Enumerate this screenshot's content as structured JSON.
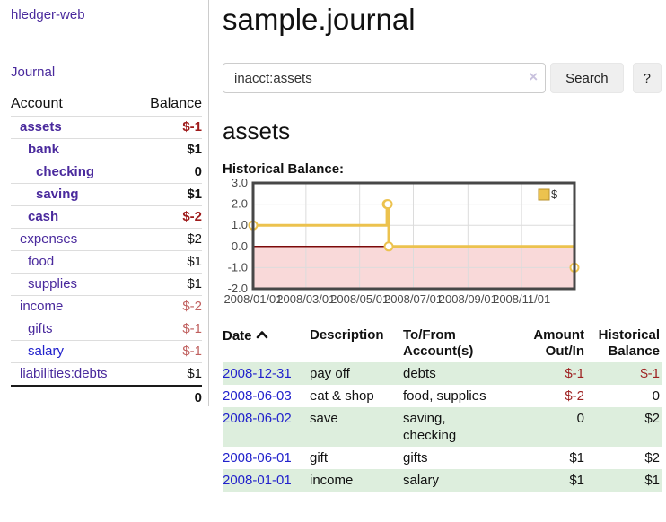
{
  "brand": "hledger-web",
  "nav": {
    "journal": "Journal"
  },
  "sidebar": {
    "account_col": "Account",
    "balance_col": "Balance",
    "accounts": [
      {
        "name": "assets",
        "balance": "$-1",
        "level": 1,
        "bold": true,
        "negative": true,
        "blue": false
      },
      {
        "name": "bank",
        "balance": "$1",
        "level": 2,
        "bold": true,
        "negative": false,
        "blue": false
      },
      {
        "name": "checking",
        "balance": "0",
        "level": 3,
        "bold": true,
        "negative": false,
        "blue": false
      },
      {
        "name": "saving",
        "balance": "$1",
        "level": 3,
        "bold": true,
        "negative": false,
        "blue": false
      },
      {
        "name": "cash",
        "balance": "$-2",
        "level": 2,
        "bold": true,
        "negative": true,
        "blue": false
      },
      {
        "name": "expenses",
        "balance": "$2",
        "level": 1,
        "bold": false,
        "negative": false,
        "blue": false
      },
      {
        "name": "food",
        "balance": "$1",
        "level": 2,
        "bold": false,
        "negative": false,
        "blue": false
      },
      {
        "name": "supplies",
        "balance": "$1",
        "level": 2,
        "bold": false,
        "negative": false,
        "blue": false
      },
      {
        "name": "income",
        "balance": "$-2",
        "level": 1,
        "bold": false,
        "negative": true,
        "blue": false
      },
      {
        "name": "gifts",
        "balance": "$-1",
        "level": 2,
        "bold": false,
        "negative": true,
        "blue": false
      },
      {
        "name": "salary",
        "balance": "$-1",
        "level": 2,
        "bold": false,
        "negative": true,
        "blue": true
      },
      {
        "name": "liabilities:debts",
        "balance": "$1",
        "level": 1,
        "bold": false,
        "negative": false,
        "blue": false
      }
    ],
    "total": "0"
  },
  "main": {
    "title": "sample.journal",
    "search": {
      "value": "inacct:assets",
      "clear": "×",
      "button_label": "Search",
      "help_label": "?"
    },
    "account_heading": "assets",
    "chart_title": "Historical Balance:"
  },
  "chart_data": {
    "type": "line",
    "step": true,
    "title": "Historical Balance:",
    "legend": [
      {
        "label": "$",
        "color": "#ecc24e"
      }
    ],
    "legend_position": "top-right",
    "x": [
      "2008-01-01",
      "2008-06-01",
      "2008-06-02",
      "2008-06-03",
      "2008-12-31"
    ],
    "series": [
      {
        "name": "$",
        "values": [
          1,
          2,
          2,
          0,
          -1
        ]
      }
    ],
    "xlim": [
      "2008-01-01",
      "2008-12-31"
    ],
    "ylim": [
      -2,
      3
    ],
    "yticks": [
      3,
      2,
      1,
      0,
      -1,
      -2
    ],
    "xticks": [
      {
        "label": "2008/01/01",
        "date": "2008-01-01"
      },
      {
        "label": "2008/03/01",
        "date": "2008-03-01"
      },
      {
        "label": "2008/05/01",
        "date": "2008-05-01"
      },
      {
        "label": "2008/07/01",
        "date": "2008-07-01"
      },
      {
        "label": "2008/09/01",
        "date": "2008-09-01"
      },
      {
        "label": "2008/11/01",
        "date": "2008-11-01"
      }
    ],
    "grid": true,
    "colors": {
      "line": "#ecc24e",
      "legend_border": "#b8922c",
      "marker_fill": "#ffffff",
      "negative_region": "#f9d9d9",
      "zero_line": "#7c0a0a",
      "border": "#474747",
      "grid": "#dcdcdc",
      "tick_text": "#4a4a4a"
    }
  },
  "register": {
    "headers": {
      "date": "Date",
      "description": "Description",
      "tofrom": "To/From Account(s)",
      "amount": "Amount Out/In",
      "balance": "Historical Balance"
    },
    "rows": [
      {
        "date": "2008-12-31",
        "description": "pay off",
        "accounts": "debts",
        "amount": "$-1",
        "amount_negative": true,
        "balance": "$-1",
        "balance_negative": true
      },
      {
        "date": "2008-06-03",
        "description": "eat & shop",
        "accounts": "food, supplies",
        "amount": "$-2",
        "amount_negative": true,
        "balance": "0",
        "balance_negative": false
      },
      {
        "date": "2008-06-02",
        "description": "save",
        "accounts": "saving, checking",
        "amount": "0",
        "amount_negative": false,
        "balance": "$2",
        "balance_negative": false
      },
      {
        "date": "2008-06-01",
        "description": "gift",
        "accounts": "gifts",
        "amount": "$1",
        "amount_negative": false,
        "balance": "$2",
        "balance_negative": false
      },
      {
        "date": "2008-01-01",
        "description": "income",
        "accounts": "salary",
        "amount": "$1",
        "amount_negative": false,
        "balance": "$1",
        "balance_negative": false
      }
    ]
  }
}
